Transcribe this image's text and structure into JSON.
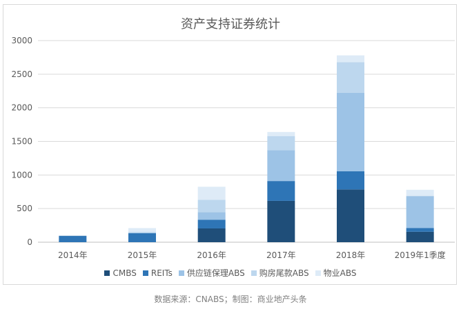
{
  "source_note": "数据来源：CNABS；制图：商业地产头条",
  "colors": {
    "CMBS": "#1f4e79",
    "REITs": "#2e75b6",
    "supply_chain": "#9dc3e6",
    "tail": "#bdd7ee",
    "property": "#deebf7",
    "grid": "#d9d9d9",
    "axis": "#bfbfbf"
  },
  "chart_data": {
    "type": "bar",
    "stacked": true,
    "title": "资产支持证券统计",
    "xlabel": "",
    "ylabel": "",
    "ylim": [
      0,
      3000
    ],
    "yticks": [
      0,
      500,
      1000,
      1500,
      2000,
      2500,
      3000
    ],
    "grid": true,
    "legend_position": "bottom",
    "categories": [
      "2014年",
      "2015年",
      "2016年",
      "2017年",
      "2018年",
      "2019年1季度"
    ],
    "series": [
      {
        "name": "CMBS",
        "color_key": "CMBS",
        "values": [
          0,
          0,
          205,
          615,
          785,
          155
        ]
      },
      {
        "name": "REITs",
        "color_key": "REITs",
        "values": [
          95,
          135,
          130,
          295,
          270,
          55
        ]
      },
      {
        "name": "供应链保理ABS",
        "color_key": "supply_chain",
        "values": [
          0,
          0,
          110,
          460,
          1170,
          475
        ]
      },
      {
        "name": "购房尾款ABS",
        "color_key": "tail",
        "values": [
          0,
          20,
          185,
          210,
          455,
          5
        ]
      },
      {
        "name": "物业ABS",
        "color_key": "property",
        "values": [
          0,
          55,
          195,
          60,
          100,
          90
        ]
      }
    ]
  }
}
